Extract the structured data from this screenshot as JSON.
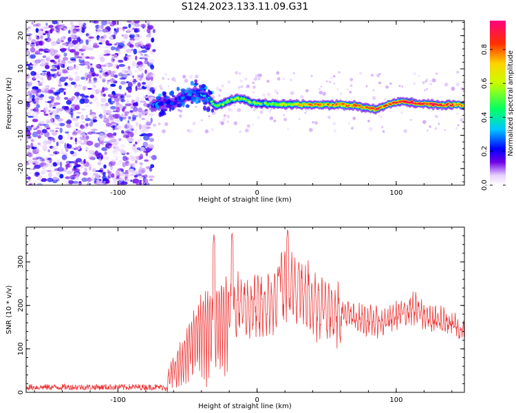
{
  "title": "S124.2023.133.11.09.G31",
  "chart_data": [
    {
      "type": "heatmap",
      "xlabel": "Height of straight line (km)",
      "ylabel": "Frequency (Hz)",
      "xlim": [
        -166,
        149
      ],
      "ylim": [
        -25,
        24.5
      ],
      "xticks": [
        -100,
        0,
        100
      ],
      "yticks": [
        -20,
        -10,
        0,
        10,
        20
      ],
      "colorbar": {
        "label": "Normalized spectral amplitude",
        "range": [
          0.0,
          0.97
        ],
        "ticks": [
          0.0,
          0.2,
          0.4,
          0.6,
          0.8
        ],
        "colormap": [
          "#ffffff",
          "#e6d0ff",
          "#7000e6",
          "#0000ff",
          "#00c8ff",
          "#00ff64",
          "#c8ff00",
          "#ffd200",
          "#ff3000",
          "#ff0080"
        ]
      },
      "noise_region": {
        "x_range": [
          -166,
          -74
        ],
        "amplitude_range": [
          0.0,
          0.2
        ]
      },
      "signal_track": [
        {
          "x": -75,
          "freq": -1.0,
          "amp": 0.35
        },
        {
          "x": -70,
          "freq": -0.5,
          "amp": 0.35
        },
        {
          "x": -65,
          "freq": 0.0,
          "amp": 0.3
        },
        {
          "x": -60,
          "freq": -0.5,
          "amp": 0.3
        },
        {
          "x": -55,
          "freq": 1.0,
          "amp": 0.3
        },
        {
          "x": -50,
          "freq": 2.0,
          "amp": 0.3
        },
        {
          "x": -45,
          "freq": 3.0,
          "amp": 0.3
        },
        {
          "x": -40,
          "freq": 2.0,
          "amp": 0.35
        },
        {
          "x": -35,
          "freq": 1.0,
          "amp": 0.4
        },
        {
          "x": -30,
          "freq": -1.0,
          "amp": 0.45
        },
        {
          "x": -25,
          "freq": -0.5,
          "amp": 0.5
        },
        {
          "x": -20,
          "freq": 0.5,
          "amp": 0.5
        },
        {
          "x": -15,
          "freq": 1.0,
          "amp": 0.55
        },
        {
          "x": -10,
          "freq": 1.0,
          "amp": 0.55
        },
        {
          "x": -5,
          "freq": 0.0,
          "amp": 0.5
        },
        {
          "x": 0,
          "freq": -0.5,
          "amp": 0.5
        },
        {
          "x": 10,
          "freq": -0.5,
          "amp": 0.55
        },
        {
          "x": 20,
          "freq": -0.8,
          "amp": 0.6
        },
        {
          "x": 30,
          "freq": -0.8,
          "amp": 0.7
        },
        {
          "x": 40,
          "freq": -0.8,
          "amp": 0.75
        },
        {
          "x": 50,
          "freq": -0.8,
          "amp": 0.75
        },
        {
          "x": 60,
          "freq": -0.8,
          "amp": 0.75
        },
        {
          "x": 70,
          "freq": -1.0,
          "amp": 0.8
        },
        {
          "x": 80,
          "freq": -1.8,
          "amp": 0.85
        },
        {
          "x": 85,
          "freq": -2.3,
          "amp": 0.85
        },
        {
          "x": 90,
          "freq": -1.5,
          "amp": 0.8
        },
        {
          "x": 95,
          "freq": -0.6,
          "amp": 0.85
        },
        {
          "x": 100,
          "freq": 0.0,
          "amp": 0.9
        },
        {
          "x": 110,
          "freq": 0.0,
          "amp": 0.95
        },
        {
          "x": 120,
          "freq": -0.5,
          "amp": 0.9
        },
        {
          "x": 130,
          "freq": -0.8,
          "amp": 0.9
        },
        {
          "x": 140,
          "freq": -0.8,
          "amp": 0.85
        },
        {
          "x": 149,
          "freq": -0.8,
          "amp": 0.8
        }
      ]
    },
    {
      "type": "line",
      "xlabel": "Height of straight line (km)",
      "ylabel": "SNR (10 * v/v)",
      "xlim": [
        -166,
        149
      ],
      "ylim": [
        0,
        380
      ],
      "xticks": [
        -100,
        0,
        100
      ],
      "yticks": [
        0,
        100,
        200,
        300
      ],
      "series": [
        {
          "color": "#ee3333",
          "x_range": [
            -166,
            149
          ],
          "envelope": [
            {
              "x": -166,
              "y": 12
            },
            {
              "x": -120,
              "y": 12
            },
            {
              "x": -66,
              "y": 12
            },
            {
              "x": -60,
              "y": 60
            },
            {
              "x": -52,
              "y": 90
            },
            {
              "x": -46,
              "y": 140
            },
            {
              "x": -40,
              "y": 170
            },
            {
              "x": -30,
              "y": 175
            },
            {
              "x": -22,
              "y": 200
            },
            {
              "x": -12,
              "y": 200
            },
            {
              "x": 0,
              "y": 195
            },
            {
              "x": 10,
              "y": 200
            },
            {
              "x": 20,
              "y": 240
            },
            {
              "x": 30,
              "y": 230
            },
            {
              "x": 40,
              "y": 210
            },
            {
              "x": 50,
              "y": 195
            },
            {
              "x": 60,
              "y": 185
            },
            {
              "x": 70,
              "y": 170
            },
            {
              "x": 80,
              "y": 165
            },
            {
              "x": 90,
              "y": 160
            },
            {
              "x": 100,
              "y": 175
            },
            {
              "x": 112,
              "y": 195
            },
            {
              "x": 125,
              "y": 165
            },
            {
              "x": 140,
              "y": 160
            },
            {
              "x": 149,
              "y": 135
            }
          ],
          "peaks": [
            {
              "x": -31,
              "y": 365
            },
            {
              "x": -18,
              "y": 370
            },
            {
              "x": 22,
              "y": 378
            },
            {
              "x": 30,
              "y": 300
            },
            {
              "x": 16,
              "y": 290
            }
          ]
        }
      ]
    }
  ]
}
